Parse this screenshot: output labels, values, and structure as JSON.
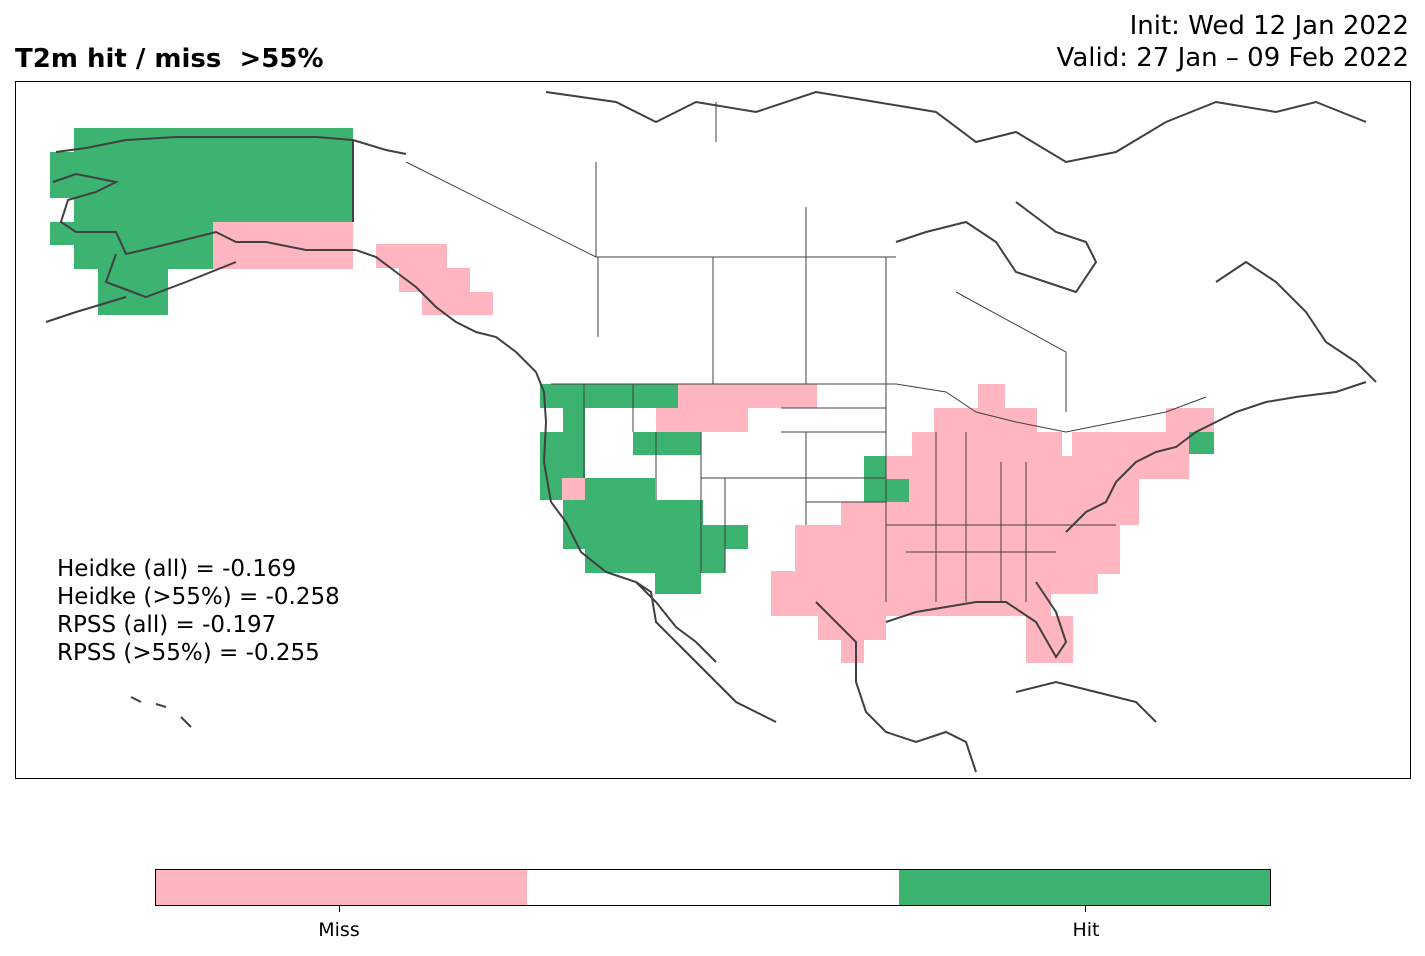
{
  "header": {
    "title": "T2m hit / miss  >55%",
    "init": "Init: Wed 12 Jan 2022",
    "valid": "Valid: 27 Jan – 09 Feb 2022"
  },
  "scores": [
    "Heidke (all) = -0.169",
    "Heidke (>55%) = -0.258",
    "RPSS (all) = -0.197",
    "RPSS (>55%) = -0.255"
  ],
  "legend": {
    "categories": [
      "Miss",
      "",
      "Hit"
    ],
    "colors": {
      "miss": "#ffb6c1",
      "neutral": "#ffffff",
      "hit": "#3cb371"
    },
    "labels": {
      "miss": "Miss",
      "hit": "Hit"
    }
  },
  "map": {
    "region": "North America",
    "coastline_color": "#404040"
  }
}
